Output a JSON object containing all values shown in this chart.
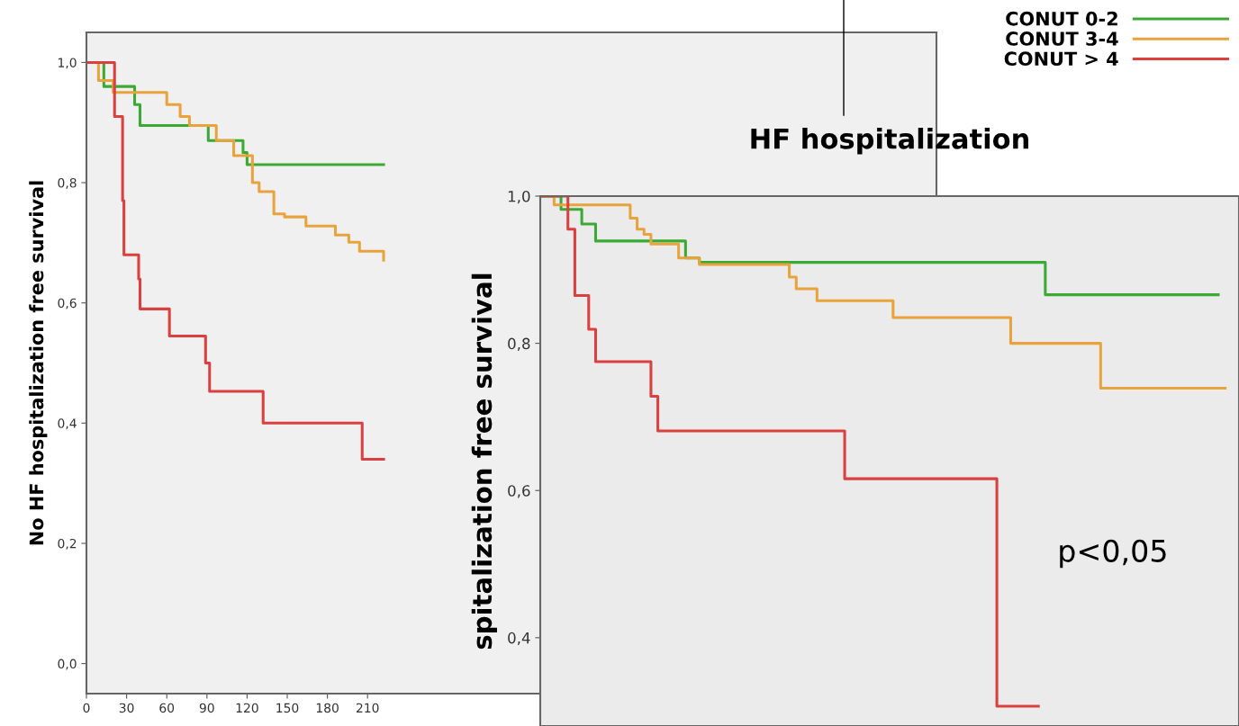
{
  "chart_data": [
    {
      "type": "step",
      "ylabel": "No HF hospitalization free survival",
      "xlim": [
        0,
        635
      ],
      "ylim": [
        -0.05,
        1.05
      ],
      "xticks": [
        0,
        30,
        60,
        90,
        120,
        150,
        180,
        210
      ],
      "yticks": [
        {
          "value": 0.0,
          "label": "0,0"
        },
        {
          "value": 0.2,
          "label": "0,2"
        },
        {
          "value": 0.4,
          "label": "0,4"
        },
        {
          "value": 0.6,
          "label": "0,6"
        },
        {
          "value": 0.8,
          "label": "0,8"
        },
        {
          "value": 1.0,
          "label": "1,0"
        }
      ],
      "legend": "top right",
      "grid": false,
      "series": [
        {
          "name": "CONUT 0-2",
          "color": "#3aaa35",
          "x": [
            0,
            13,
            36,
            40,
            91,
            117,
            120,
            222
          ],
          "values": [
            1.0,
            0.96,
            0.93,
            0.895,
            0.87,
            0.85,
            0.83,
            0.83
          ]
        },
        {
          "name": "CONUT 3-4",
          "color": "#e8a33c",
          "x": [
            0,
            9,
            20,
            60,
            70,
            77,
            97,
            110,
            124,
            129,
            140,
            148,
            164,
            186,
            196,
            204,
            222
          ],
          "values": [
            1.0,
            0.97,
            0.95,
            0.93,
            0.91,
            0.895,
            0.87,
            0.845,
            0.8,
            0.785,
            0.748,
            0.743,
            0.728,
            0.713,
            0.701,
            0.686,
            0.671
          ]
        },
        {
          "name": "CONUT > 4",
          "color": "#d9403f",
          "x": [
            0,
            21,
            27,
            28,
            39,
            40,
            62,
            89,
            92,
            132,
            206,
            222
          ],
          "values": [
            1.0,
            0.91,
            0.77,
            0.68,
            0.64,
            0.59,
            0.545,
            0.5,
            0.453,
            0.4,
            0.34,
            0.34
          ]
        }
      ]
    },
    {
      "type": "step",
      "title": "HF hospitalization",
      "ylabel": "spitalization free survival",
      "ylim": [
        0.28,
        1.0
      ],
      "categories": [
        null,
        null,
        null,
        null,
        null,
        null,
        null,
        null,
        null,
        null,
        null,
        null,
        null,
        null,
        null,
        null,
        null,
        null,
        null,
        null,
        null,
        null,
        null,
        null,
        null,
        null,
        null,
        null,
        null,
        null,
        null,
        null,
        null,
        null,
        null,
        null,
        null,
        null,
        null,
        null,
        null,
        null,
        null,
        null,
        null,
        null,
        null,
        null,
        null,
        null,
        null,
        null,
        null,
        null,
        null,
        null,
        null,
        null,
        null,
        null,
        null,
        null,
        null,
        null,
        null,
        null,
        null,
        null,
        null,
        null,
        null,
        null,
        null,
        null,
        null,
        null,
        null,
        null,
        null,
        null,
        null,
        null,
        null,
        null,
        null,
        null,
        null,
        null,
        null,
        null,
        null,
        null,
        null,
        null,
        null,
        null,
        null,
        null,
        null,
        null
      ],
      "yticks": [
        {
          "value": 0.4,
          "label": "0,4"
        },
        {
          "value": 0.6,
          "label": "0,6"
        },
        {
          "value": 0.8,
          "label": "0,8"
        },
        {
          "value": 1.0,
          "label": "1,0"
        }
      ],
      "tick_labels": "y",
      "grid": false,
      "annotations": [
        "p<0,05"
      ],
      "series": [
        {
          "color": "#3aaa35",
          "values": [
            1.0,
            1.0,
            1.0,
            0.982,
            0.982,
            0.982,
            0.962,
            0.962,
            0.939,
            0.939,
            0.939,
            0.939,
            0.939,
            0.939,
            0.939,
            0.939,
            0.939,
            0.939,
            0.939,
            0.939,
            0.939,
            0.916,
            0.916,
            0.91,
            0.91,
            0.91,
            0.91,
            0.91,
            0.91,
            0.91,
            0.91,
            0.91,
            0.91,
            0.91,
            0.91,
            0.91,
            0.91,
            0.91,
            0.91,
            0.91,
            0.91,
            0.91,
            0.91,
            0.91,
            0.91,
            0.91,
            0.91,
            0.91,
            0.91,
            0.91,
            0.91,
            0.91,
            0.91,
            0.91,
            0.91,
            0.91,
            0.91,
            0.91,
            0.91,
            0.91,
            0.91,
            0.91,
            0.91,
            0.91,
            0.91,
            0.91,
            0.91,
            0.91,
            0.91,
            0.91,
            0.91,
            0.91,
            0.91,
            0.866,
            0.866,
            0.866,
            0.866,
            0.866,
            0.866,
            0.866,
            0.866,
            0.866,
            0.866,
            0.866,
            0.866,
            0.866,
            0.866,
            0.866,
            0.866,
            0.866,
            0.866,
            0.866,
            0.866,
            0.866,
            0.866,
            0.866,
            0.866,
            0.866,
            0.866,
            null
          ]
        },
        {
          "color": "#e8a33c",
          "values": [
            1.0,
            1.0,
            0.988,
            0.988,
            0.988,
            0.988,
            0.988,
            0.988,
            0.988,
            0.988,
            0.988,
            0.988,
            0.988,
            0.97,
            0.955,
            0.948,
            0.935,
            0.935,
            0.935,
            0.935,
            0.916,
            0.916,
            0.916,
            0.907,
            0.907,
            0.907,
            0.907,
            0.907,
            0.907,
            0.907,
            0.907,
            0.907,
            0.907,
            0.907,
            0.907,
            0.907,
            0.89,
            0.874,
            0.874,
            0.874,
            0.858,
            0.858,
            0.858,
            0.858,
            0.858,
            0.858,
            0.858,
            0.858,
            0.858,
            0.858,
            0.858,
            0.835,
            0.835,
            0.835,
            0.835,
            0.835,
            0.835,
            0.835,
            0.835,
            0.835,
            0.835,
            0.835,
            0.835,
            0.835,
            0.835,
            0.835,
            0.835,
            0.835,
            0.8,
            0.8,
            0.8,
            0.8,
            0.8,
            0.8,
            0.8,
            0.8,
            0.8,
            0.8,
            0.8,
            0.8,
            0.8,
            0.739,
            0.739,
            0.739,
            0.739,
            0.739,
            0.739,
            0.739,
            0.739,
            0.739,
            0.739,
            0.739,
            0.739,
            0.739,
            0.739,
            0.739,
            0.739,
            0.739,
            0.739,
            0.739
          ]
        },
        {
          "color": "#d9403f",
          "values": [
            1.0,
            1.0,
            1.0,
            1.0,
            0.955,
            0.865,
            0.865,
            0.819,
            0.775,
            0.775,
            0.775,
            0.775,
            0.775,
            0.775,
            0.775,
            0.775,
            0.728,
            0.681,
            0.681,
            0.681,
            0.681,
            0.681,
            0.681,
            0.681,
            0.681,
            0.681,
            0.681,
            0.681,
            0.681,
            0.681,
            0.681,
            0.681,
            0.681,
            0.681,
            0.681,
            0.681,
            0.681,
            0.681,
            0.681,
            0.681,
            0.681,
            0.681,
            0.681,
            0.681,
            0.616,
            0.616,
            0.616,
            0.616,
            0.616,
            0.616,
            0.616,
            0.616,
            0.616,
            0.616,
            0.616,
            0.616,
            0.616,
            0.616,
            0.616,
            0.616,
            0.616,
            0.616,
            0.616,
            0.616,
            0.616,
            0.616,
            0.307,
            0.307,
            0.307,
            0.307,
            0.307,
            0.307,
            0.307,
            null,
            null,
            null,
            null,
            null,
            null,
            null,
            null,
            null,
            null,
            null,
            null,
            null,
            null,
            null,
            null,
            null,
            null,
            null,
            null,
            null,
            null,
            null,
            null,
            null,
            null,
            null
          ]
        }
      ]
    }
  ]
}
